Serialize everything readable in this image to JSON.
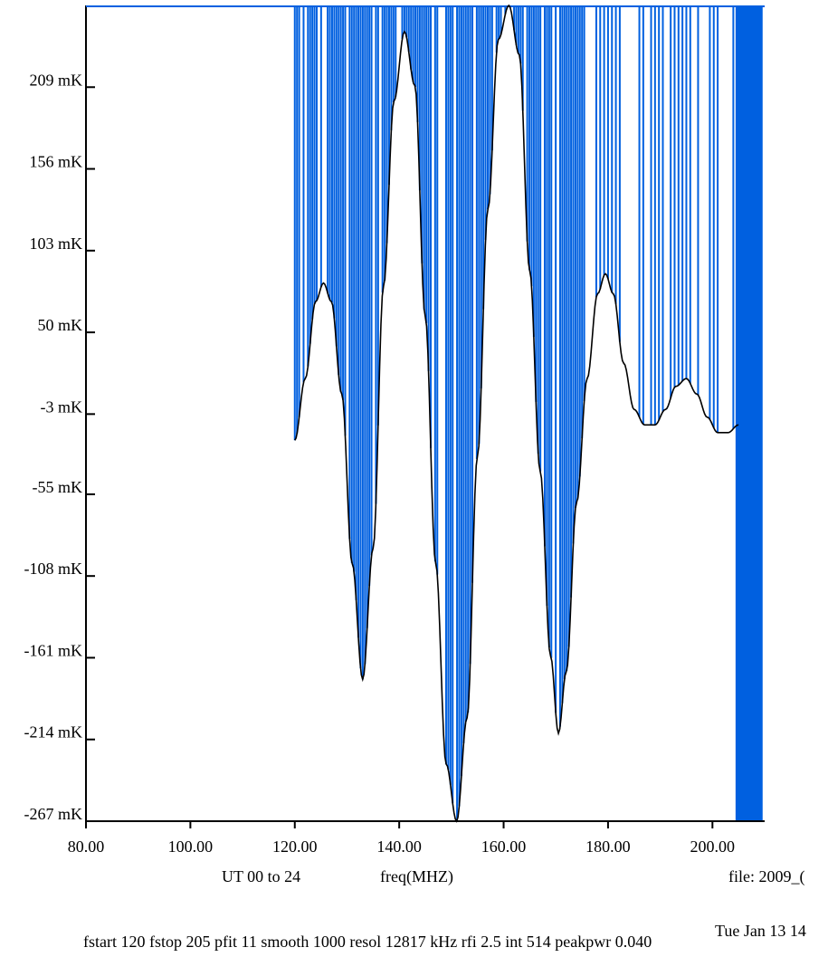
{
  "chart_data": {
    "type": "line",
    "title": "",
    "xlabel": "freq(MHZ)",
    "ylabel": "",
    "xlim": [
      80,
      210
    ],
    "ylim": [
      -267,
      262
    ],
    "x_ticks": [
      {
        "value": 80,
        "label": "80.00"
      },
      {
        "value": 100,
        "label": "100.00"
      },
      {
        "value": 120,
        "label": "120.00"
      },
      {
        "value": 140,
        "label": "140.00"
      },
      {
        "value": 160,
        "label": "160.00"
      },
      {
        "value": 180,
        "label": "180.00"
      },
      {
        "value": 200,
        "label": "200.00"
      }
    ],
    "y_ticks": [
      {
        "value": -267,
        "label": "-267 mK"
      },
      {
        "value": -214,
        "label": "-214 mK"
      },
      {
        "value": -161,
        "label": "-161 mK"
      },
      {
        "value": -108,
        "label": "-108 mK"
      },
      {
        "value": -55,
        "label": "-55 mK"
      },
      {
        "value": -3,
        "label": "-3 mK"
      },
      {
        "value": 50,
        "label": "50 mK"
      },
      {
        "value": 103,
        "label": "103 mK"
      },
      {
        "value": 156,
        "label": "156 mK"
      },
      {
        "value": 209,
        "label": "209 mK"
      }
    ],
    "series": [
      {
        "color": "#000000",
        "points": [
          [
            120,
            -20
          ],
          [
            122,
            20
          ],
          [
            124,
            70
          ],
          [
            125.5,
            82
          ],
          [
            127,
            70
          ],
          [
            129,
            10
          ],
          [
            131,
            -100
          ],
          [
            133,
            -175
          ],
          [
            135,
            -90
          ],
          [
            137,
            80
          ],
          [
            139,
            200
          ],
          [
            141,
            245
          ],
          [
            143,
            210
          ],
          [
            145,
            60
          ],
          [
            147,
            -100
          ],
          [
            149,
            -230
          ],
          [
            151,
            -267
          ],
          [
            153,
            -200
          ],
          [
            155,
            -30
          ],
          [
            157,
            130
          ],
          [
            159,
            240
          ],
          [
            161,
            262
          ],
          [
            163,
            230
          ],
          [
            165,
            90
          ],
          [
            167,
            -40
          ],
          [
            169,
            -160
          ],
          [
            170.5,
            -210
          ],
          [
            172,
            -170
          ],
          [
            174,
            -60
          ],
          [
            176,
            20
          ],
          [
            178,
            75
          ],
          [
            179.5,
            88
          ],
          [
            181,
            75
          ],
          [
            183,
            30
          ],
          [
            185,
            0
          ],
          [
            187,
            -10
          ],
          [
            189,
            -10
          ],
          [
            191,
            0
          ],
          [
            193,
            15
          ],
          [
            195,
            20
          ],
          [
            197,
            10
          ],
          [
            199,
            -5
          ],
          [
            201,
            -15
          ],
          [
            203,
            -15
          ],
          [
            205,
            -10
          ]
        ]
      },
      {
        "color": "#0060e0",
        "render": "vertical-spikes-to-top",
        "edge_points": [
          [
            120,
            -20
          ],
          [
            175.5,
            -1
          ],
          [
            205,
            -10
          ]
        ]
      }
    ]
  },
  "footer": {
    "ut_range": "UT 00 to 24",
    "freq_label": "freq(MHZ)",
    "file_label": "file: 2009_(",
    "date_label": "Tue Jan 13 14",
    "params": "fstart 120 fstop 205 pfit 11 smooth 1000 resol 12817 kHz rfi 2.5 int 514 peakpwr 0.040"
  },
  "colors": {
    "axis": "#000000",
    "spikes": "#0060e0",
    "curve": "#000000",
    "background": "#ffffff"
  }
}
